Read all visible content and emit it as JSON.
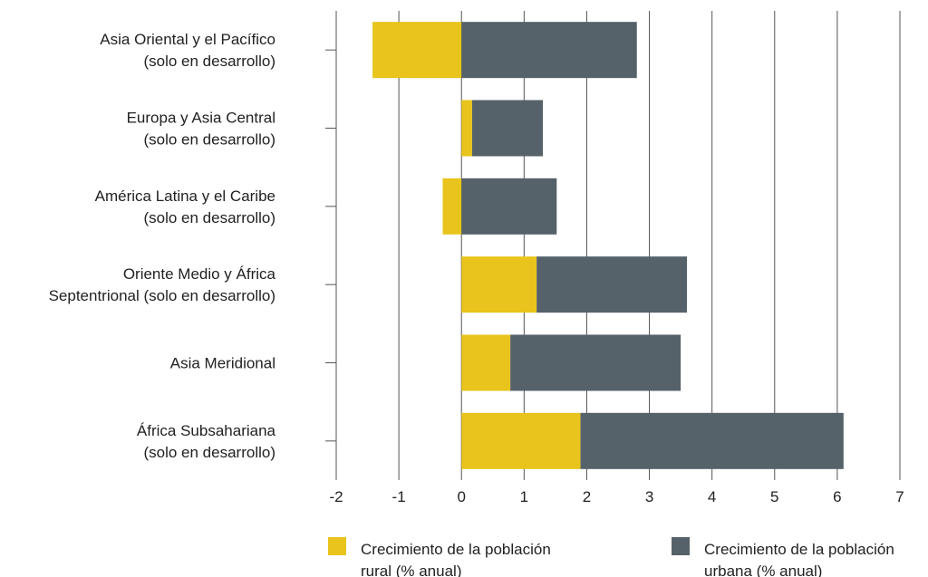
{
  "chart_data": {
    "type": "bar",
    "orientation": "horizontal",
    "stacked": true,
    "categories": [
      "Asia Oriental y el Pacífico\n(solo en desarrollo)",
      "Europa y Asia Central\n(solo en desarrollo)",
      "América Latina y el Caribe\n(solo en desarrollo)",
      "Oriente Medio y África\nSeptentrional (solo en desarrollo)",
      "Asia Meridional",
      "África Subsahariana\n(solo en desarrollo)"
    ],
    "series": [
      {
        "name": "Crecimiento de la población\nrural (% anual)",
        "color": "#e8c41c",
        "values": [
          -1.42,
          0.17,
          -0.3,
          1.2,
          0.78,
          1.9
        ]
      },
      {
        "name": "Crecimiento de la población\nurbana (% anual)",
        "color": "#56626a",
        "values": [
          2.8,
          1.13,
          1.52,
          2.4,
          2.72,
          4.2
        ]
      }
    ],
    "xlim": [
      -2,
      7
    ],
    "xticks": [
      -2,
      -1,
      0,
      1,
      2,
      3,
      4,
      5,
      6,
      7
    ],
    "grid": true,
    "legend": "bottom"
  }
}
